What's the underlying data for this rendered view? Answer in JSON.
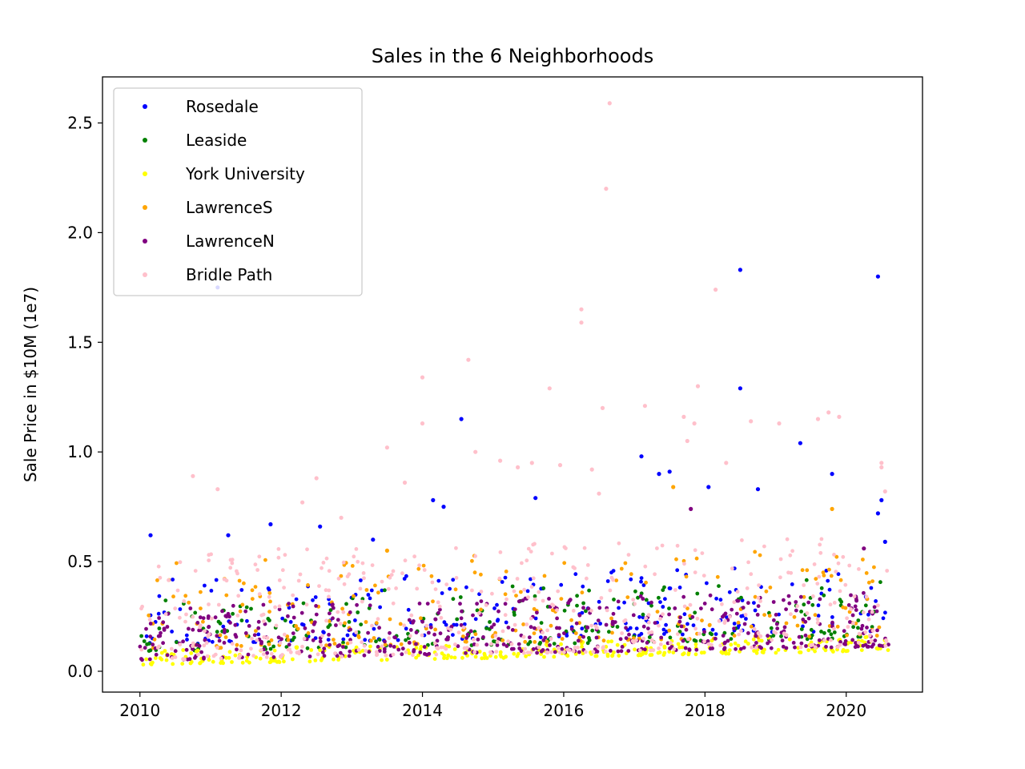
{
  "chart_data": {
    "type": "scatter",
    "title": "Sales in the 6 Neighborhoods",
    "xlabel": "",
    "ylabel": "Sale Price in $10M (1e7)",
    "xlim": [
      2009.47,
      2021.08
    ],
    "ylim": [
      -0.095,
      2.71
    ],
    "x_ticks": [
      2010,
      2012,
      2014,
      2016,
      2018,
      2020
    ],
    "y_ticks": [
      0.0,
      0.5,
      1.0,
      1.5,
      2.0,
      2.5
    ],
    "x_tick_labels": [
      "2010",
      "2012",
      "2014",
      "2016",
      "2018",
      "2020"
    ],
    "y_tick_labels": [
      "0.0",
      "0.5",
      "1.0",
      "1.5",
      "2.0",
      "2.5"
    ],
    "grid": false,
    "legend_position": "upper-left",
    "series": [
      {
        "name": "Rosedale",
        "color": "#0000ff",
        "points": [
          [
            2010.15,
            0.62
          ],
          [
            2011.1,
            1.75
          ],
          [
            2011.25,
            0.62
          ],
          [
            2011.85,
            0.67
          ],
          [
            2012.55,
            0.66
          ],
          [
            2013.3,
            0.6
          ],
          [
            2014.15,
            0.78
          ],
          [
            2014.3,
            0.75
          ],
          [
            2014.55,
            1.15
          ],
          [
            2015.6,
            0.79
          ],
          [
            2017.1,
            0.98
          ],
          [
            2017.5,
            0.91
          ],
          [
            2017.35,
            0.9
          ],
          [
            2018.05,
            0.84
          ],
          [
            2018.5,
            1.83
          ],
          [
            2018.5,
            1.29
          ],
          [
            2018.75,
            0.83
          ],
          [
            2019.35,
            1.04
          ],
          [
            2019.8,
            0.9
          ],
          [
            2020.45,
            1.8
          ],
          [
            2020.5,
            0.78
          ],
          [
            2020.45,
            0.72
          ],
          [
            2020.55,
            0.59
          ]
        ],
        "band": {
          "lo": 0.12,
          "hi": 0.42,
          "density": 220
        }
      },
      {
        "name": "Leaside",
        "color": "#008000",
        "points": [],
        "band": {
          "lo": 0.09,
          "hi": 0.36,
          "density": 220
        }
      },
      {
        "name": "York University",
        "color": "#ffff00",
        "points": [],
        "band": {
          "lo": 0.03,
          "hi": 0.1,
          "density": 300
        }
      },
      {
        "name": "LawrenceS",
        "color": "#ffa500",
        "points": [
          [
            2017.55,
            0.84
          ],
          [
            2019.8,
            0.74
          ],
          [
            2013.5,
            0.55
          ]
        ],
        "band": {
          "lo": 0.1,
          "hi": 0.5,
          "density": 220
        }
      },
      {
        "name": "LawrenceN",
        "color": "#800080",
        "points": [
          [
            2017.8,
            0.74
          ],
          [
            2020.25,
            0.56
          ]
        ],
        "band": {
          "lo": 0.05,
          "hi": 0.3,
          "density": 480
        }
      },
      {
        "name": "Bridle Path",
        "color": "#ffc0cb",
        "points": [
          [
            2010.75,
            0.89
          ],
          [
            2011.1,
            0.83
          ],
          [
            2012.3,
            0.77
          ],
          [
            2012.5,
            0.88
          ],
          [
            2012.85,
            0.7
          ],
          [
            2013.5,
            1.02
          ],
          [
            2013.75,
            0.86
          ],
          [
            2014.0,
            1.34
          ],
          [
            2014.0,
            1.13
          ],
          [
            2014.65,
            1.42
          ],
          [
            2014.75,
            1.0
          ],
          [
            2015.1,
            0.96
          ],
          [
            2015.35,
            0.93
          ],
          [
            2015.55,
            0.95
          ],
          [
            2015.8,
            1.29
          ],
          [
            2015.95,
            0.94
          ],
          [
            2016.25,
            1.65
          ],
          [
            2016.25,
            1.59
          ],
          [
            2016.4,
            0.92
          ],
          [
            2016.5,
            0.81
          ],
          [
            2016.55,
            1.2
          ],
          [
            2016.6,
            2.2
          ],
          [
            2016.65,
            2.59
          ],
          [
            2017.15,
            1.21
          ],
          [
            2017.7,
            1.16
          ],
          [
            2017.9,
            1.3
          ],
          [
            2017.85,
            1.13
          ],
          [
            2017.75,
            1.05
          ],
          [
            2018.15,
            1.74
          ],
          [
            2018.3,
            0.95
          ],
          [
            2018.65,
            1.14
          ],
          [
            2019.05,
            1.13
          ],
          [
            2019.6,
            1.15
          ],
          [
            2019.75,
            1.18
          ],
          [
            2019.9,
            1.16
          ],
          [
            2020.5,
            0.95
          ],
          [
            2020.5,
            0.93
          ],
          [
            2020.55,
            0.82
          ]
        ],
        "band": {
          "lo": 0.05,
          "hi": 0.55,
          "density": 420
        }
      }
    ]
  }
}
